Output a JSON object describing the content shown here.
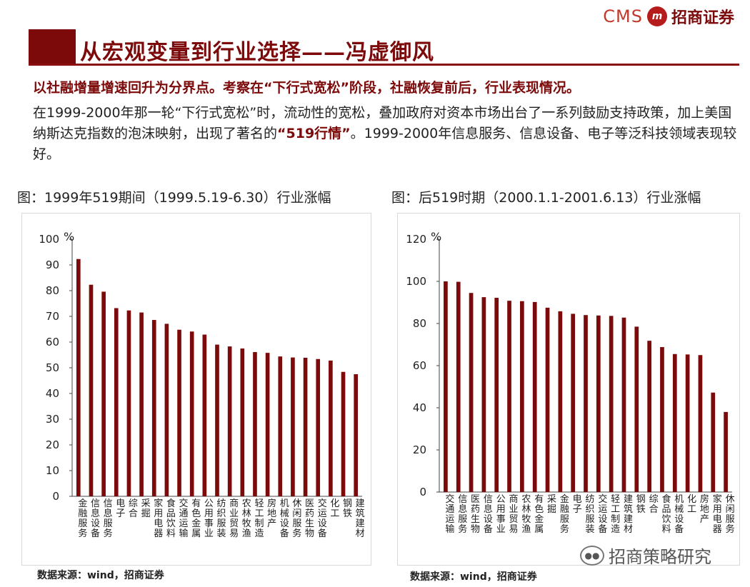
{
  "header": {
    "title": "从宏观变量到行业选择——冯虚御风",
    "logo_en": "CMS",
    "logo_mark": "m",
    "logo_cn": "招商证券"
  },
  "subtitle": "以社融增量增速回升为分界点。考察在“下行式宽松”阶段，社融恢复前后，行业表现情况。",
  "paragraph": {
    "part1": "在1999-2000年那一轮“下行式宽松”时，流动性的宽松，叠加政府对资本市场出台了一系列鼓励支持政策，加上美国纳斯达克指数的泡沫映射，出现了著名的",
    "highlight": "“519行情”",
    "part2": "。1999-2000年信息服务、信息设备、电子等泛科技领域表现较好。"
  },
  "colors": {
    "bar": "#7c0a0a",
    "axis": "#444444",
    "brand": "#7c0a0a"
  },
  "chart_data": [
    {
      "type": "bar",
      "title": "图：1999年519期间（1999.5.19-6.30）行业涨幅",
      "ylabel": "%",
      "ylim": [
        0,
        100
      ],
      "yticks": [
        0,
        10,
        20,
        30,
        40,
        50,
        60,
        70,
        80,
        90,
        100
      ],
      "categories": [
        "金融服务",
        "信息设备",
        "信息服务",
        "电子",
        "综合",
        "采掘",
        "家用电器",
        "食品饮料",
        "交通运输",
        "有色金属",
        "公用事业",
        "纺织服装",
        "商业贸易",
        "农林牧渔",
        "轻工制造",
        "房地产",
        "机械设备",
        "休闲服务",
        "医药生物",
        "交运设备",
        "化工",
        "钢铁",
        "建筑建材"
      ],
      "values": [
        92.3,
        82.3,
        79.6,
        73.2,
        72.3,
        71.5,
        68.6,
        67.1,
        64.8,
        64.1,
        62.9,
        59.0,
        58.3,
        57.5,
        56.1,
        55.8,
        54.4,
        54.0,
        53.9,
        53.4,
        52.8,
        48.4,
        47.5
      ],
      "source": "数据来源：wind，招商证券"
    },
    {
      "type": "bar",
      "title": "图：后519时期（2000.1.1-2001.6.13）行业涨幅",
      "ylabel": "%",
      "ylim": [
        0,
        120
      ],
      "yticks": [
        0,
        20,
        40,
        60,
        80,
        100,
        120
      ],
      "categories": [
        "交通运输",
        "信息服务",
        "医药生物",
        "信息设备",
        "公用事业",
        "商业贸易",
        "农林牧渔",
        "有色金属",
        "采掘",
        "金融服务",
        "电子",
        "纺织服装",
        "交运设备",
        "轻工制造",
        "建筑建材",
        "钢铁",
        "综合",
        "食品饮料",
        "机械设备",
        "化工",
        "房地产",
        "家用电器",
        "休闲服务"
      ],
      "values": [
        100.0,
        99.8,
        94.5,
        92.5,
        92.2,
        90.8,
        90.6,
        90.2,
        87.5,
        85.8,
        84.6,
        84.0,
        83.8,
        83.6,
        82.8,
        78.5,
        71.8,
        68.8,
        65.5,
        65.3,
        65.0,
        47.2,
        38.0
      ],
      "source": "数据来源：wind，招商证券"
    }
  ],
  "watermark": "招商策略研究",
  "watermark_icon": "wechat-icon"
}
